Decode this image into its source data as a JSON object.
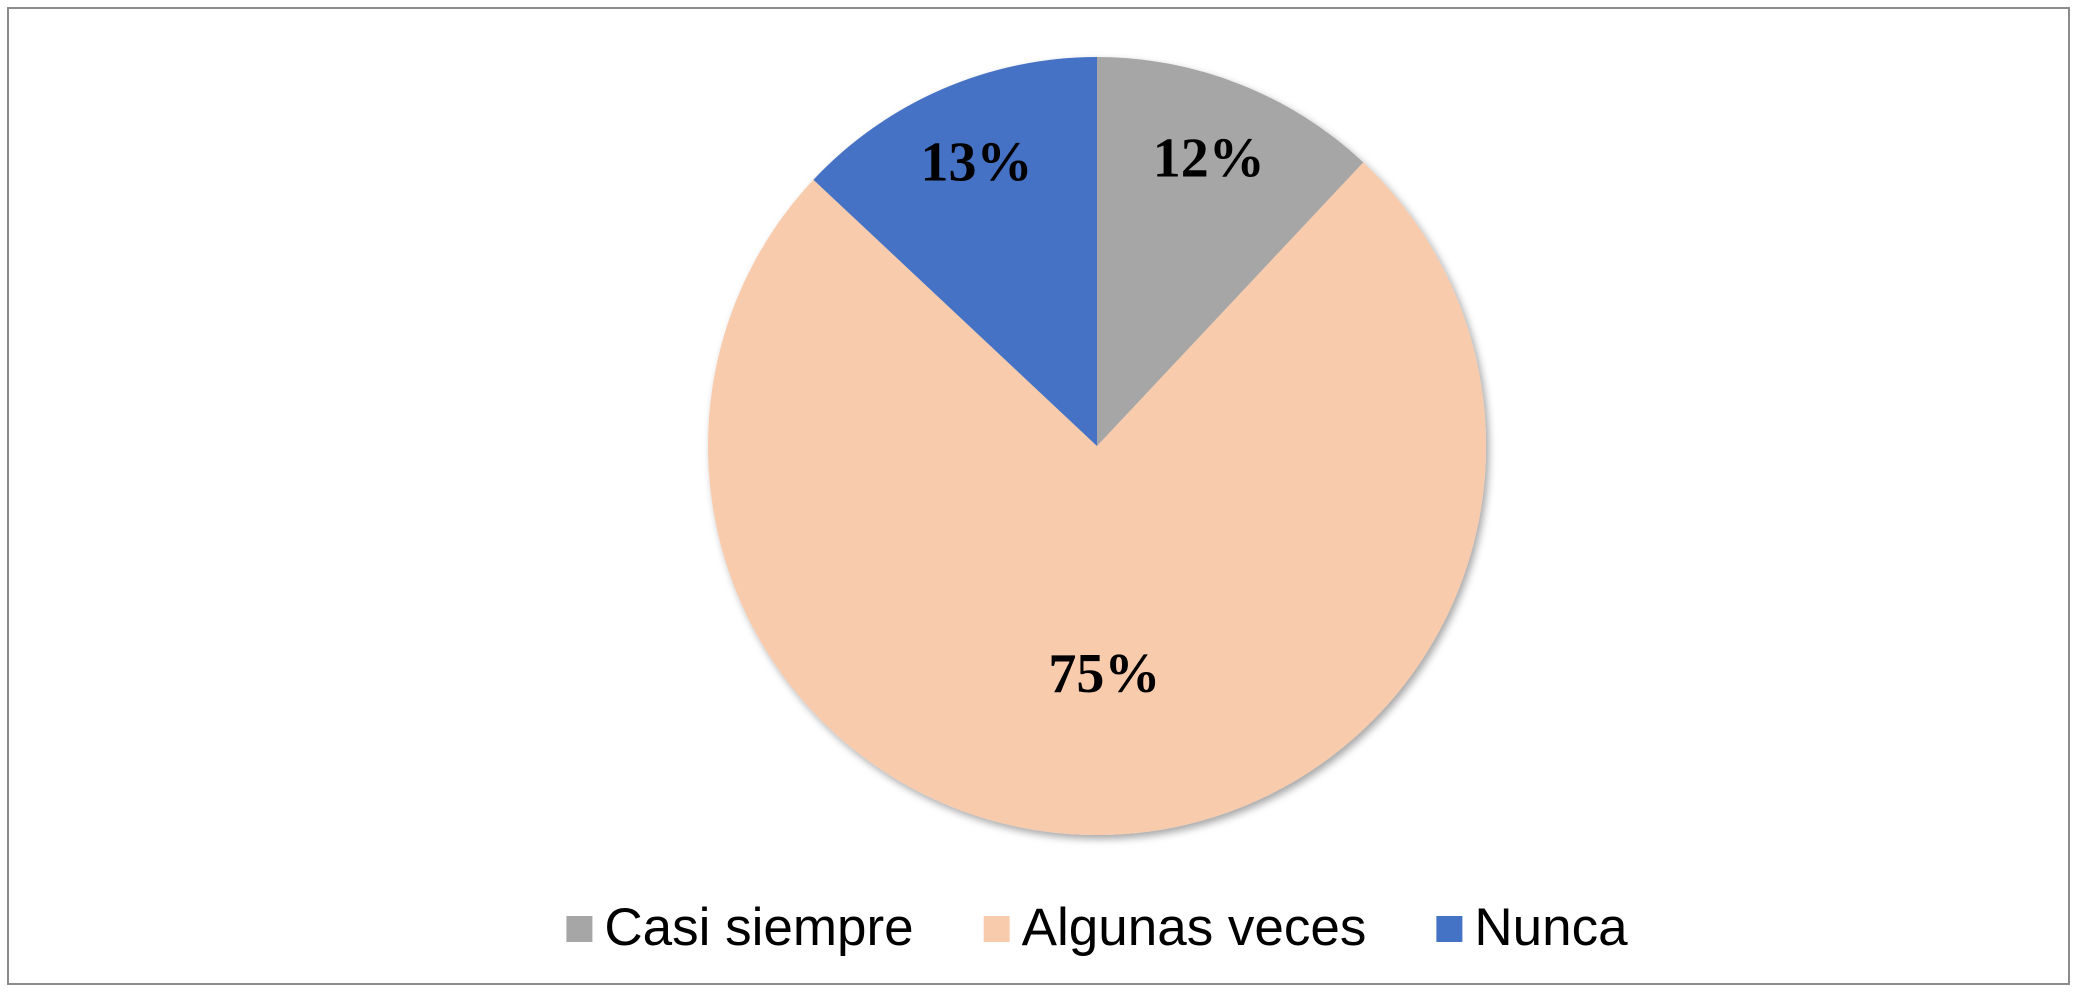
{
  "chart_data": {
    "type": "pie",
    "categories": [
      "Casi siempre",
      "Algunas veces",
      "Nunca"
    ],
    "values": [
      12,
      75,
      13
    ],
    "value_labels": [
      "12%",
      "75%",
      "13%"
    ],
    "colors": [
      "#a6a6a6",
      "#f8cbad",
      "#4472c4"
    ],
    "start_angle": 0,
    "direction": "clockwise",
    "legend": "bottom"
  }
}
